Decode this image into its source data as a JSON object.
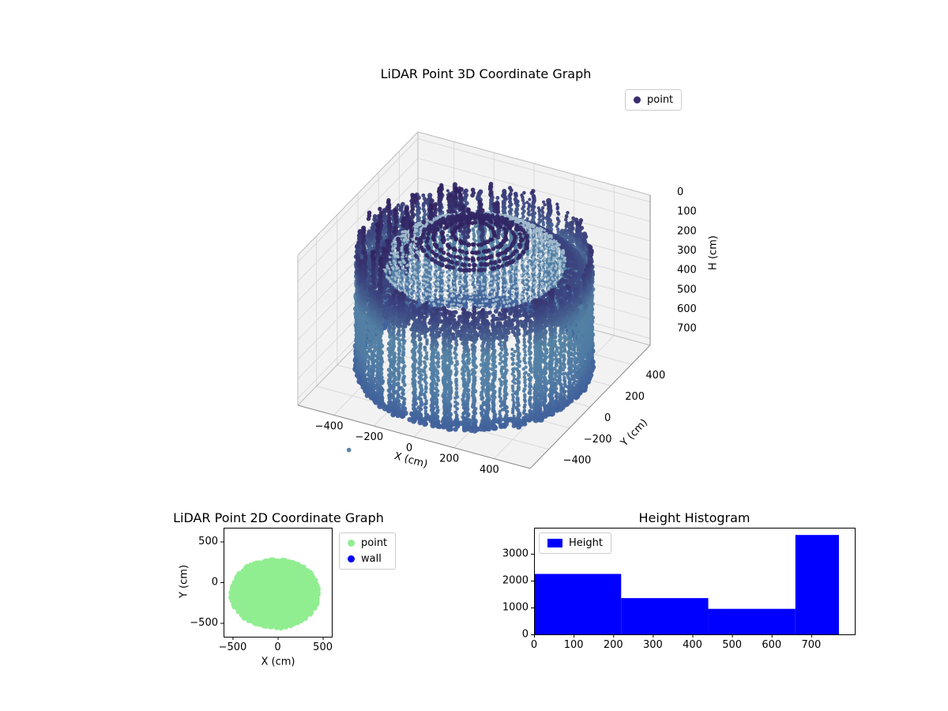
{
  "page": {
    "background": "#ffffff"
  },
  "chart_data": [
    {
      "id": "lidar-3d",
      "type": "scatter3d",
      "title": "LiDAR Point 3D Coordinate Graph",
      "xlabel": "X (cm)",
      "ylabel": "Y (cm)",
      "zlabel": "H (cm)",
      "x_ticks": [
        -400,
        -200,
        0,
        200,
        400
      ],
      "y_ticks": [
        -400,
        -200,
        0,
        200,
        400
      ],
      "h_ticks": [
        0,
        100,
        200,
        300,
        400,
        500,
        600,
        700
      ],
      "xlim": [
        -580,
        580
      ],
      "ylim": [
        -580,
        580
      ],
      "hlim": [
        -35,
        735
      ],
      "h_axis_inverted": true,
      "grid": true,
      "legend": {
        "position": "upper right",
        "entries": [
          {
            "label": "point",
            "color": "#3b2a6e",
            "marker": "circle"
          }
        ]
      },
      "point_cloud": {
        "shape": "cylindrical wall with dome cap",
        "cylinder_radius_cm": 520,
        "wall_height_range_cm": [
          60,
          700
        ],
        "dome_height_range_cm": [
          0,
          245
        ],
        "color_by": "height",
        "colormap_stops": [
          [
            0,
            "#31205e"
          ],
          [
            150,
            "#3c4781"
          ],
          [
            320,
            "#5381a3"
          ],
          [
            520,
            "#4f7aa3"
          ],
          [
            700,
            "#3f5f9a"
          ]
        ],
        "outlier_point_xyh": [
          -180,
          -860,
          700
        ],
        "approx_point_count": 8000
      }
    },
    {
      "id": "lidar-2d",
      "type": "scatter",
      "title": "LiDAR Point 2D Coordinate Graph",
      "xlabel": "X (cm)",
      "ylabel": "Y (cm)",
      "x_ticks": [
        -500,
        0,
        500
      ],
      "y_ticks": [
        500,
        0,
        -500
      ],
      "xlim": [
        -600,
        600
      ],
      "ylim": [
        -670,
        670
      ],
      "legend": {
        "position": "outside upper right",
        "entries": [
          {
            "label": "point",
            "color": "#90ee90",
            "marker": "circle"
          },
          {
            "label": "wall",
            "color": "#0000ff",
            "marker": "circle"
          }
        ]
      },
      "series": [
        {
          "name": "point",
          "color": "#90ee90",
          "blob": {
            "center_x": -30,
            "center_y": -140,
            "radius_x": 490,
            "radius_y": 425,
            "x_range": [
              -515,
              455
            ],
            "y_range": [
              -560,
              280
            ]
          }
        },
        {
          "name": "wall",
          "color": "#0000ff",
          "visible_points": 0
        }
      ]
    },
    {
      "id": "height-histogram",
      "type": "bar",
      "title": "Height Histogram",
      "bar_color": "#0000ff",
      "x_ticks": [
        0,
        100,
        200,
        300,
        400,
        500,
        600,
        700
      ],
      "y_ticks": [
        0,
        1000,
        2000,
        3000
      ],
      "xlim": [
        0,
        810
      ],
      "ylim": [
        0,
        3970
      ],
      "legend": {
        "position": "upper left",
        "entries": [
          {
            "label": "Height",
            "color": "#0000ff",
            "marker": "square"
          }
        ]
      },
      "bin_edges": [
        0,
        220,
        440,
        660,
        770
      ],
      "values": [
        2250,
        1350,
        950,
        3700
      ]
    }
  ]
}
